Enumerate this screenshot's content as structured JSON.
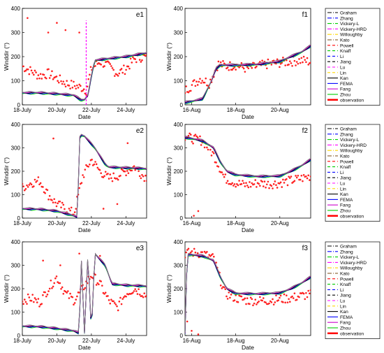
{
  "figure": {
    "y_axis_label": "Winddir (°)",
    "x_axis_label": "Date"
  },
  "legend": [
    {
      "name": "Graham",
      "color": "#000000",
      "dash": "6,2,1,2"
    },
    {
      "name": "Zhang",
      "color": "#0000ff",
      "dash": "6,2,1,2"
    },
    {
      "name": "Vickery-L",
      "color": "#00d000",
      "dash": "6,2,1,2"
    },
    {
      "name": "Vickery-HRD",
      "color": "#ff00ff",
      "dash": "6,2,1,2"
    },
    {
      "name": "Willoughby",
      "color": "#ffd700",
      "dash": "6,2,1,2"
    },
    {
      "name": "Kato",
      "color": "#7a4a10",
      "dash": "6,2,1,2"
    },
    {
      "name": "Powell",
      "color": "#ff0000",
      "dash": "4,3"
    },
    {
      "name": "Knaff",
      "color": "#00cc00",
      "dash": "4,3"
    },
    {
      "name": "Li",
      "color": "#0000ff",
      "dash": "4,3"
    },
    {
      "name": "Jiang",
      "color": "#000000",
      "dash": "4,3"
    },
    {
      "name": "Lu",
      "color": "#ff00ff",
      "dash": "4,3"
    },
    {
      "name": "Lin",
      "color": "#ffd700",
      "dash": "4,3"
    },
    {
      "name": "Kan",
      "color": "#000000",
      "dash": ""
    },
    {
      "name": "FEMA",
      "color": "#0000ff",
      "dash": ""
    },
    {
      "name": "Fang",
      "color": "#cc00cc",
      "dash": ""
    },
    {
      "name": "Zhou",
      "color": "#00cc00",
      "dash": ""
    },
    {
      "name": "observation",
      "color": "#ff0000",
      "dash": "",
      "thick": true
    }
  ],
  "chart_data": [
    {
      "id": "e1",
      "panel_label": "e1",
      "type": "line",
      "x_ticks": [
        {
          "x": 0,
          "label": "18-July"
        },
        {
          "x": 2,
          "label": "20-July"
        },
        {
          "x": 4,
          "label": "22-July"
        },
        {
          "x": 6,
          "label": "24-July"
        }
      ],
      "xlim": [
        0,
        7.2
      ],
      "ylim": [
        0,
        400
      ],
      "y_ticks": [
        0,
        100,
        200,
        300,
        400
      ],
      "model": {
        "x": [
          0,
          1,
          2,
          3,
          3.4,
          3.6,
          3.8,
          4.0,
          4.2,
          5,
          6,
          7,
          7.2
        ],
        "y": [
          50,
          50,
          46,
          40,
          20,
          22,
          40,
          120,
          185,
          192,
          200,
          213,
          215
        ]
      },
      "spike": {
        "x": 3.7,
        "y": [
          0,
          350
        ],
        "color": "#ff00ff"
      },
      "obs": {
        "x": [
          0,
          0.5,
          1,
          1.5,
          2,
          2.5,
          3,
          3.5,
          3.7,
          4,
          4.5,
          5,
          5.5,
          6,
          6.5,
          7,
          7.2
        ],
        "y": [
          160,
          140,
          120,
          130,
          110,
          90,
          80,
          70,
          60,
          150,
          180,
          160,
          130,
          150,
          190,
          200,
          195
        ],
        "outliers": [
          [
            0.3,
            360
          ],
          [
            1.5,
            300
          ],
          [
            2.0,
            340
          ],
          [
            2.5,
            310
          ],
          [
            3.3,
            300
          ]
        ]
      }
    },
    {
      "id": "f1",
      "panel_label": "f1",
      "type": "line",
      "x_ticks": [
        {
          "x": 0,
          "label": "16-Aug"
        },
        {
          "x": 2,
          "label": "18-Aug"
        },
        {
          "x": 4,
          "label": "20-Aug"
        }
      ],
      "xlim": [
        -0.3,
        5.4
      ],
      "ylim": [
        0,
        400
      ],
      "y_ticks": [
        0,
        100,
        200,
        300,
        400
      ],
      "model": {
        "x": [
          -0.3,
          0,
          0.5,
          0.9,
          1.1,
          1.3,
          2,
          3,
          4,
          4.5,
          5,
          5.4
        ],
        "y": [
          10,
          15,
          25,
          100,
          150,
          165,
          165,
          168,
          180,
          200,
          220,
          245
        ]
      },
      "obs": {
        "x": [
          -0.3,
          0,
          0.4,
          0.8,
          1.2,
          1.6,
          2,
          2.5,
          3,
          3.5,
          4,
          4.5,
          5,
          5.4
        ],
        "y": [
          60,
          80,
          110,
          90,
          170,
          160,
          165,
          150,
          160,
          170,
          175,
          180,
          185,
          178
        ],
        "outliers": []
      }
    },
    {
      "id": "e2",
      "panel_label": "e2",
      "type": "line",
      "x_ticks": [
        {
          "x": 0,
          "label": "18-July"
        },
        {
          "x": 2,
          "label": "20-July"
        },
        {
          "x": 4,
          "label": "22-July"
        },
        {
          "x": 6,
          "label": "24-July"
        }
      ],
      "xlim": [
        0,
        7.2
      ],
      "ylim": [
        0,
        400
      ],
      "y_ticks": [
        0,
        100,
        200,
        300,
        400
      ],
      "model": {
        "x": [
          0,
          1,
          2,
          3,
          3.2,
          3.3,
          3.4,
          3.6,
          4.2,
          4.8,
          5,
          6,
          7,
          7.2
        ],
        "y": [
          40,
          38,
          30,
          10,
          5,
          340,
          355,
          350,
          300,
          230,
          218,
          215,
          212,
          210
        ]
      },
      "obs": {
        "x": [
          0,
          0.5,
          1,
          1.5,
          2,
          2.5,
          3,
          3.5,
          4,
          4.5,
          5,
          5.5,
          6,
          6.5,
          7,
          7.2
        ],
        "y": [
          130,
          150,
          160,
          100,
          60,
          40,
          20,
          180,
          250,
          200,
          170,
          180,
          200,
          220,
          180,
          175
        ],
        "outliers": [
          [
            1.8,
            340
          ],
          [
            4.7,
            40
          ],
          [
            5.5,
            60
          ],
          [
            6.1,
            320
          ]
        ]
      }
    },
    {
      "id": "f2",
      "panel_label": "f2",
      "type": "line",
      "x_ticks": [
        {
          "x": 0,
          "label": "16-Aug"
        },
        {
          "x": 2,
          "label": "18-Aug"
        },
        {
          "x": 4,
          "label": "20-Aug"
        }
      ],
      "xlim": [
        -0.3,
        5.4
      ],
      "ylim": [
        0,
        400
      ],
      "y_ticks": [
        0,
        100,
        200,
        300,
        400
      ],
      "model": {
        "x": [
          -0.3,
          0,
          0.5,
          1,
          1.3,
          1.6,
          2,
          3,
          4,
          4.5,
          5,
          5.4
        ],
        "y": [
          345,
          340,
          330,
          300,
          240,
          200,
          185,
          178,
          180,
          200,
          225,
          250
        ]
      },
      "obs": {
        "x": [
          -0.3,
          0,
          0.5,
          1,
          1.5,
          2,
          2.5,
          3,
          3.5,
          4,
          4.5,
          5,
          5.4
        ],
        "y": [
          350,
          340,
          330,
          270,
          170,
          150,
          140,
          150,
          145,
          150,
          160,
          170,
          180
        ],
        "outliers": [
          [
            0.3,
            30
          ],
          [
            0.1,
            10
          ]
        ]
      }
    },
    {
      "id": "e3",
      "panel_label": "e3",
      "type": "line",
      "x_ticks": [
        {
          "x": 0,
          "label": "18-July"
        },
        {
          "x": 2,
          "label": "20-July"
        },
        {
          "x": 4,
          "label": "22-July"
        },
        {
          "x": 6,
          "label": "24-July"
        }
      ],
      "xlim": [
        0,
        7.2
      ],
      "ylim": [
        0,
        400
      ],
      "y_ticks": [
        0,
        100,
        200,
        300,
        400
      ],
      "model": {
        "x": [
          0,
          1,
          2,
          3,
          3.3,
          3.4,
          3.6,
          3.8,
          4.0,
          4.2,
          4.8,
          5.2,
          6,
          7,
          7.2
        ],
        "y": [
          40,
          38,
          30,
          20,
          10,
          350,
          10,
          355,
          5,
          350,
          300,
          220,
          215,
          212,
          210
        ]
      },
      "obs": {
        "x": [
          0,
          0.5,
          1,
          1.5,
          2,
          2.5,
          3,
          3.5,
          4,
          4.5,
          5,
          5.5,
          6,
          6.5,
          7,
          7.2
        ],
        "y": [
          150,
          160,
          140,
          200,
          250,
          180,
          150,
          200,
          260,
          220,
          150,
          120,
          180,
          200,
          180,
          170
        ],
        "outliers": [
          [
            1.2,
            320
          ],
          [
            2.2,
            300
          ],
          [
            3.3,
            350
          ],
          [
            4.5,
            340
          ]
        ]
      }
    },
    {
      "id": "f3",
      "panel_label": "f3",
      "type": "line",
      "x_ticks": [
        {
          "x": 0,
          "label": "16-Aug"
        },
        {
          "x": 2,
          "label": "18-Aug"
        },
        {
          "x": 4,
          "label": "20-Aug"
        }
      ],
      "xlim": [
        -0.3,
        5.4
      ],
      "ylim": [
        0,
        400
      ],
      "y_ticks": [
        0,
        100,
        200,
        300,
        400
      ],
      "model": {
        "x": [
          -0.3,
          -0.25,
          -0.2,
          0,
          0.5,
          1,
          1.3,
          1.6,
          2,
          3,
          4,
          4.5,
          5,
          5.4
        ],
        "y": [
          10,
          200,
          345,
          345,
          340,
          320,
          250,
          200,
          180,
          178,
          182,
          200,
          225,
          250
        ]
      },
      "obs": {
        "x": [
          -0.3,
          0,
          0.5,
          1,
          1.5,
          2,
          2.5,
          3,
          3.5,
          4,
          4.5,
          5,
          5.4
        ],
        "y": [
          350,
          355,
          350,
          330,
          180,
          160,
          150,
          148,
          150,
          155,
          160,
          170,
          175
        ],
        "outliers": [
          [
            -0.2,
            60
          ],
          [
            0.0,
            20
          ],
          [
            0.3,
            5
          ]
        ]
      }
    }
  ]
}
